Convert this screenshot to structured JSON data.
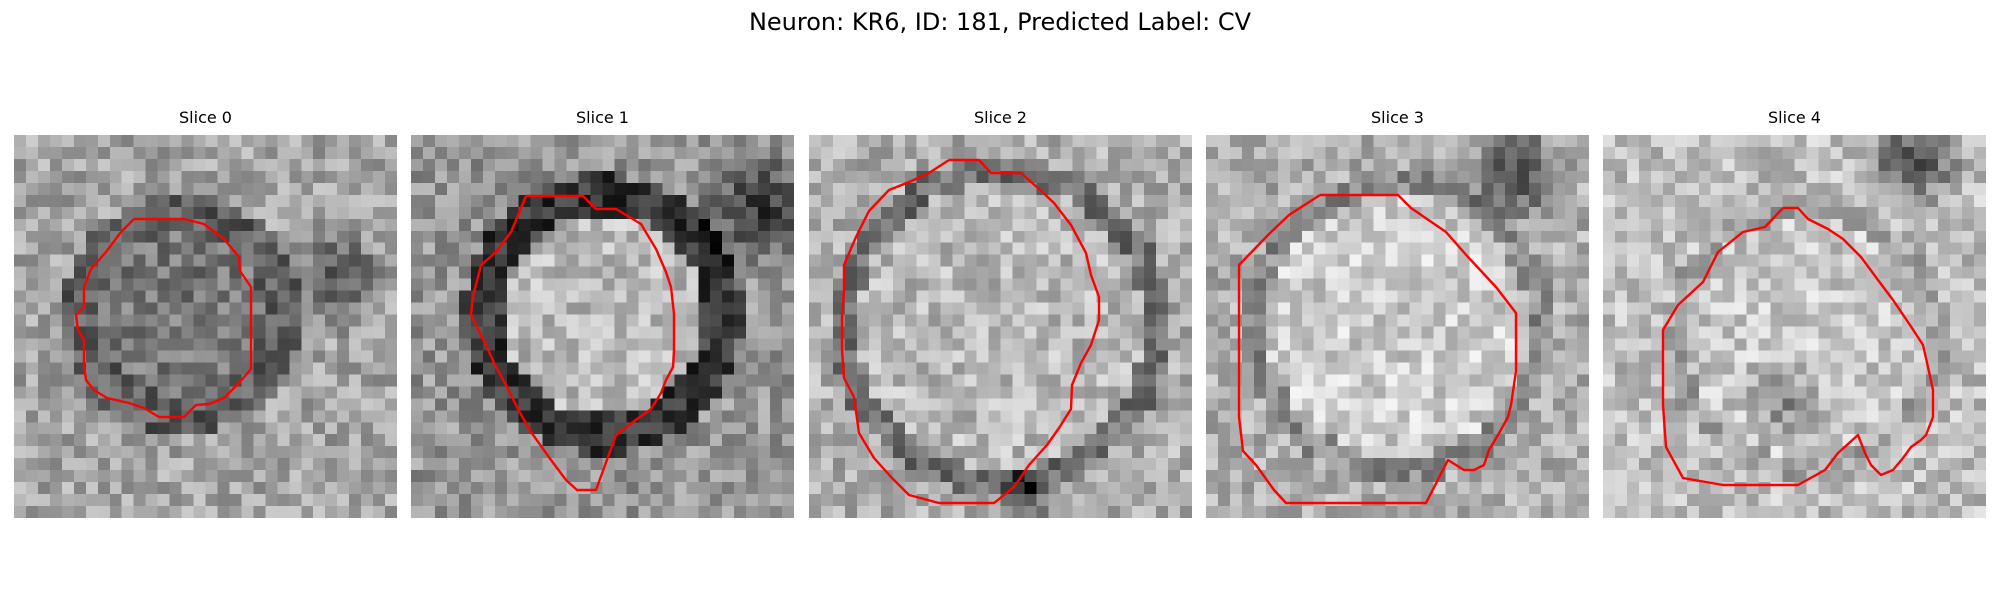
{
  "title": "Neuron: KR6, ID: 181, Predicted Label: CV",
  "contour_color": "#ff0000",
  "panels": [
    {
      "label": "Slice 0"
    },
    {
      "label": "Slice 1"
    },
    {
      "label": "Slice 2"
    },
    {
      "label": "Slice 3"
    },
    {
      "label": "Slice 4"
    }
  ]
}
